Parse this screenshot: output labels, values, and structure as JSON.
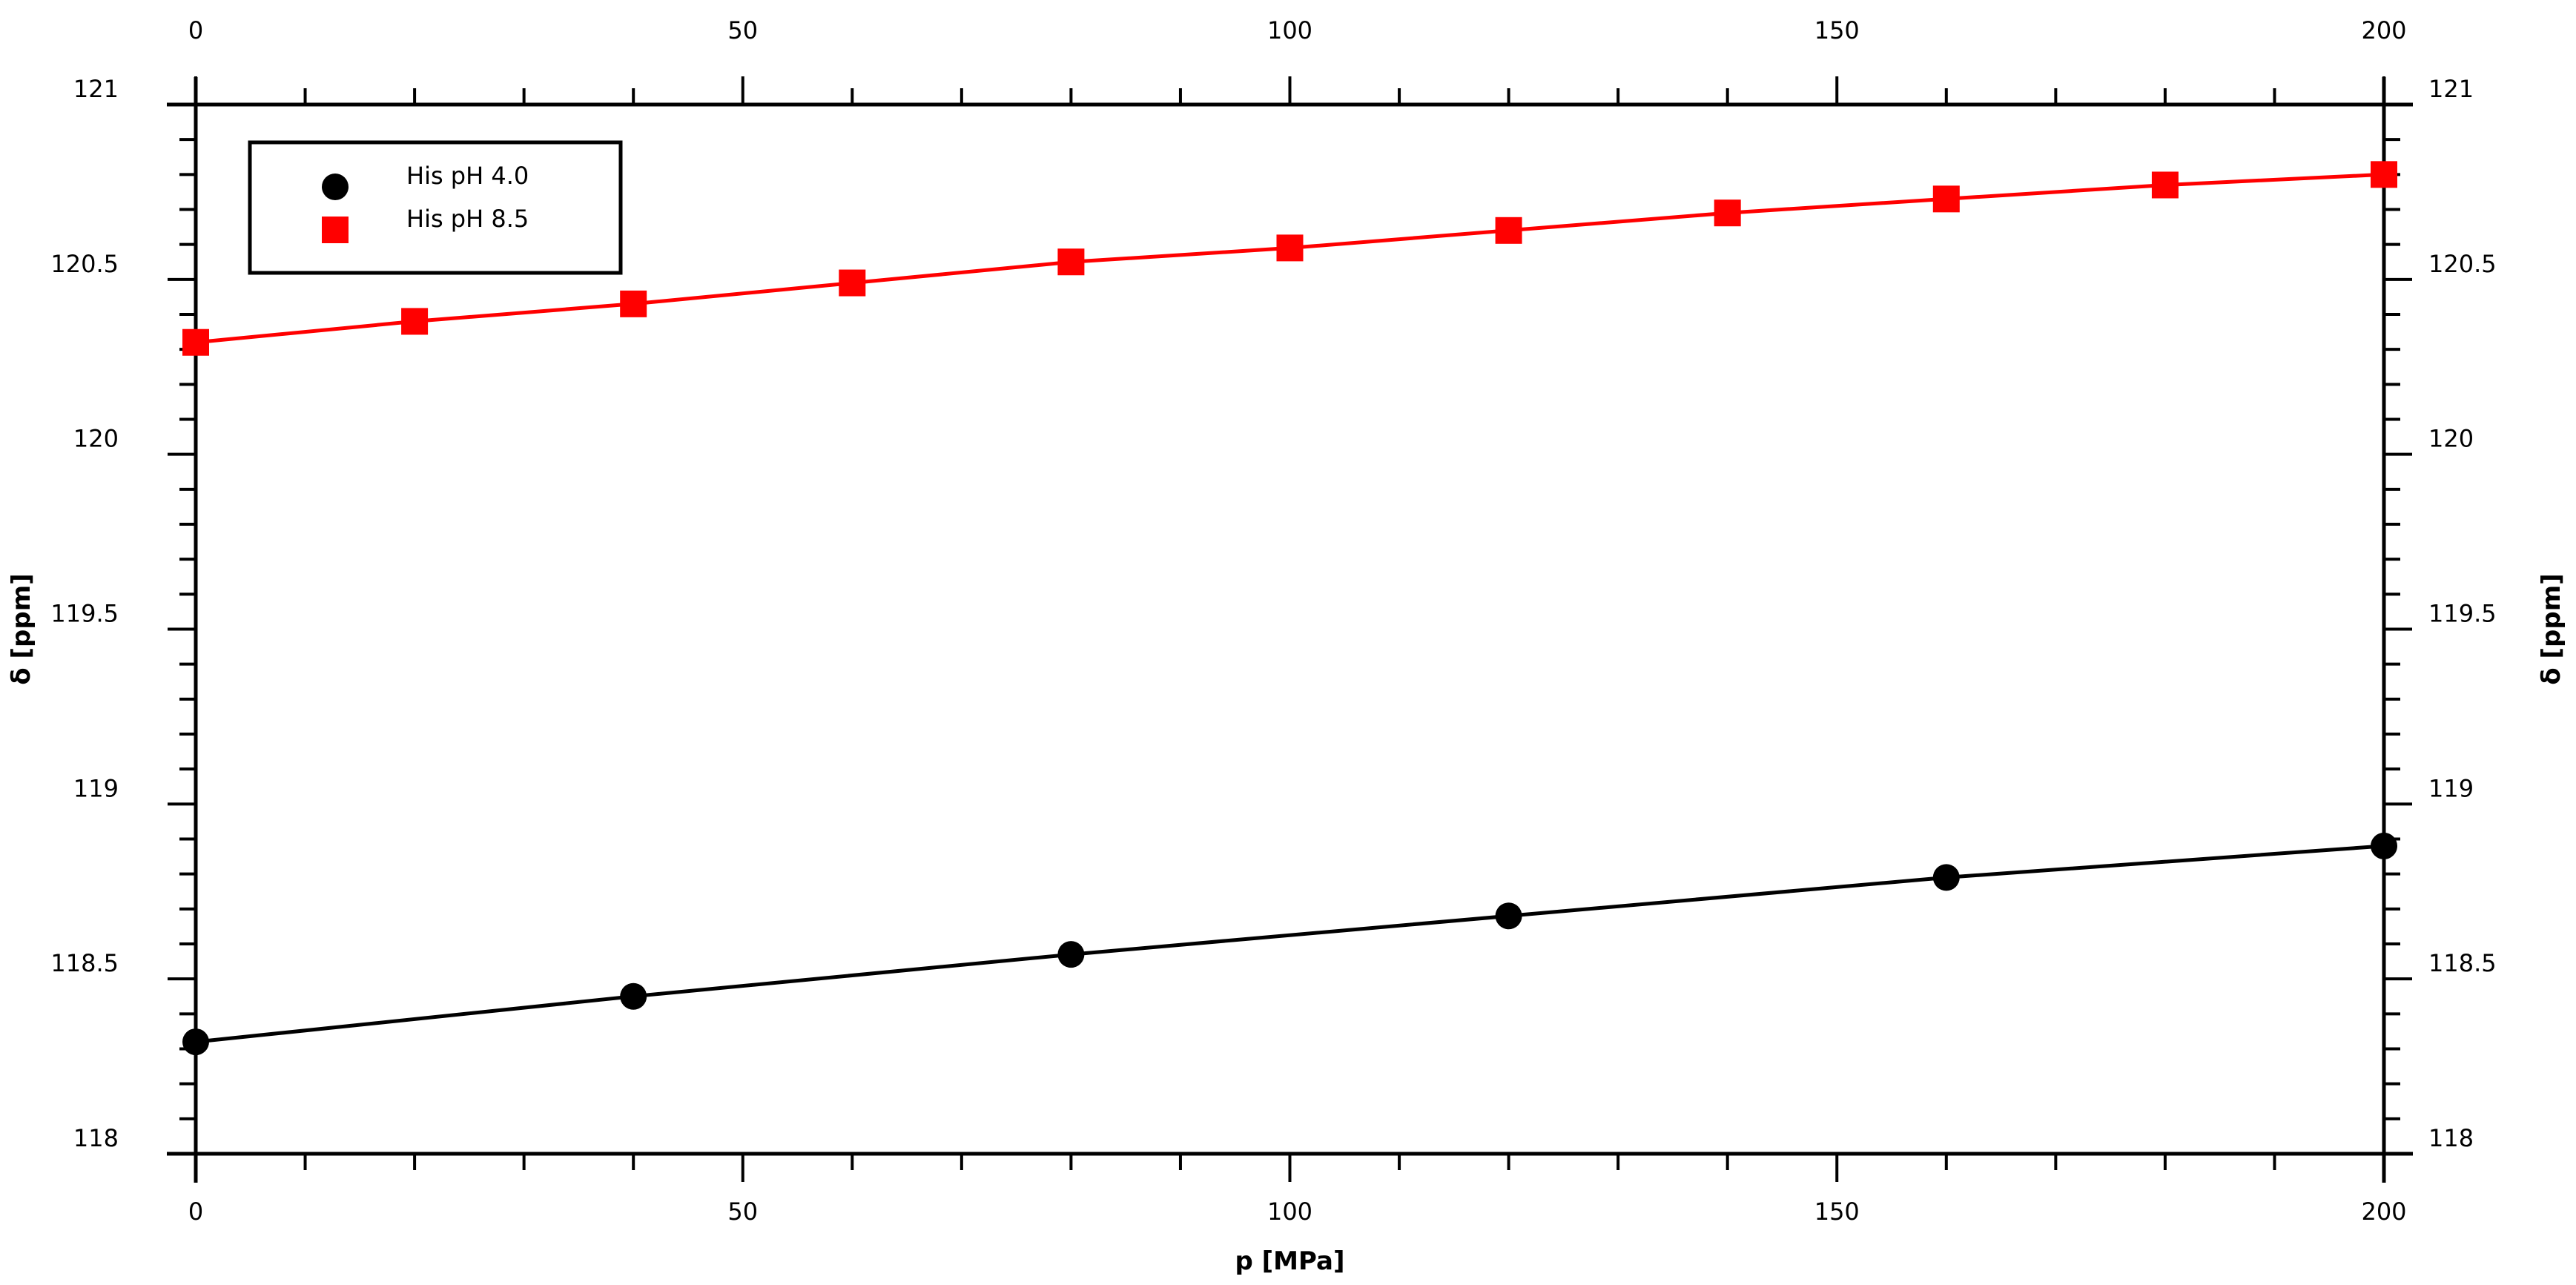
{
  "chart_data": {
    "type": "scatter",
    "title": "",
    "xlabel": "p [MPa]",
    "ylabel": "δ [ppm]",
    "ylabel_right": "δ [ppm]",
    "xlim": [
      0,
      200
    ],
    "ylim": [
      118,
      121
    ],
    "x_ticks": [
      0,
      50,
      100,
      150,
      200
    ],
    "x_tick_labels": [
      "0",
      "50",
      "100",
      "150",
      "200"
    ],
    "x_minor_step": 10,
    "y_ticks": [
      118,
      118.5,
      119,
      119.5,
      120,
      120.5,
      121
    ],
    "y_tick_labels": [
      "118",
      "118.5",
      "119",
      "119.5",
      "120",
      "120.5",
      "121"
    ],
    "y_minor_step": 0.1,
    "grid": false,
    "legend_position": "top-left",
    "series": [
      {
        "name": "His pH 4.0",
        "color": "#000000",
        "marker": "circle",
        "line": true,
        "x": [
          0,
          40,
          80,
          120,
          160,
          200
        ],
        "y": [
          118.32,
          118.45,
          118.57,
          118.68,
          118.79,
          118.88
        ]
      },
      {
        "name": "His pH 8.5",
        "color": "#ff0000",
        "marker": "square",
        "line": true,
        "x": [
          0,
          20,
          40,
          60,
          80,
          100,
          120,
          140,
          160,
          180,
          200
        ],
        "y": [
          120.32,
          120.38,
          120.43,
          120.49,
          120.55,
          120.59,
          120.64,
          120.69,
          120.73,
          120.77,
          120.8
        ]
      }
    ]
  }
}
